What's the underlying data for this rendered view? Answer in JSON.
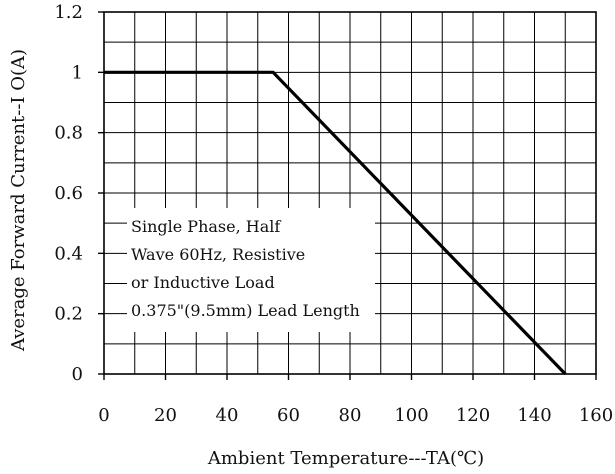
{
  "chart_data": {
    "type": "line",
    "xlabel": "Ambient Temperature---TA(℃)",
    "ylabel": "Average Forward Current--I O(A)",
    "xlim": [
      0,
      160
    ],
    "ylim": [
      0,
      1.2
    ],
    "x_ticks": [
      "0",
      "20",
      "40",
      "60",
      "80",
      "100",
      "120",
      "140",
      "160"
    ],
    "y_ticks": [
      "0",
      "0.2",
      "0.4",
      "0.6",
      "0.8",
      "1",
      "1.2"
    ],
    "x_tick_values": [
      0,
      20,
      40,
      60,
      80,
      100,
      120,
      140,
      160
    ],
    "y_tick_values": [
      0,
      0.2,
      0.4,
      0.6,
      0.8,
      1.0,
      1.2
    ],
    "grid": true,
    "grid_x_step": 10,
    "grid_y_step": 0.1,
    "series": [
      {
        "x": [
          0,
          55,
          150
        ],
        "y": [
          1.0,
          1.0,
          0.0
        ]
      }
    ],
    "annotation": {
      "lines": [
        "Single Phase, Half",
        " Wave 60Hz, Resistive",
        "  or Inductive Load",
        " 0.375\"(9.5mm) Lead Length"
      ]
    },
    "colors": {
      "line": "#000000",
      "grid": "#000000",
      "background": "#ffffff"
    }
  }
}
